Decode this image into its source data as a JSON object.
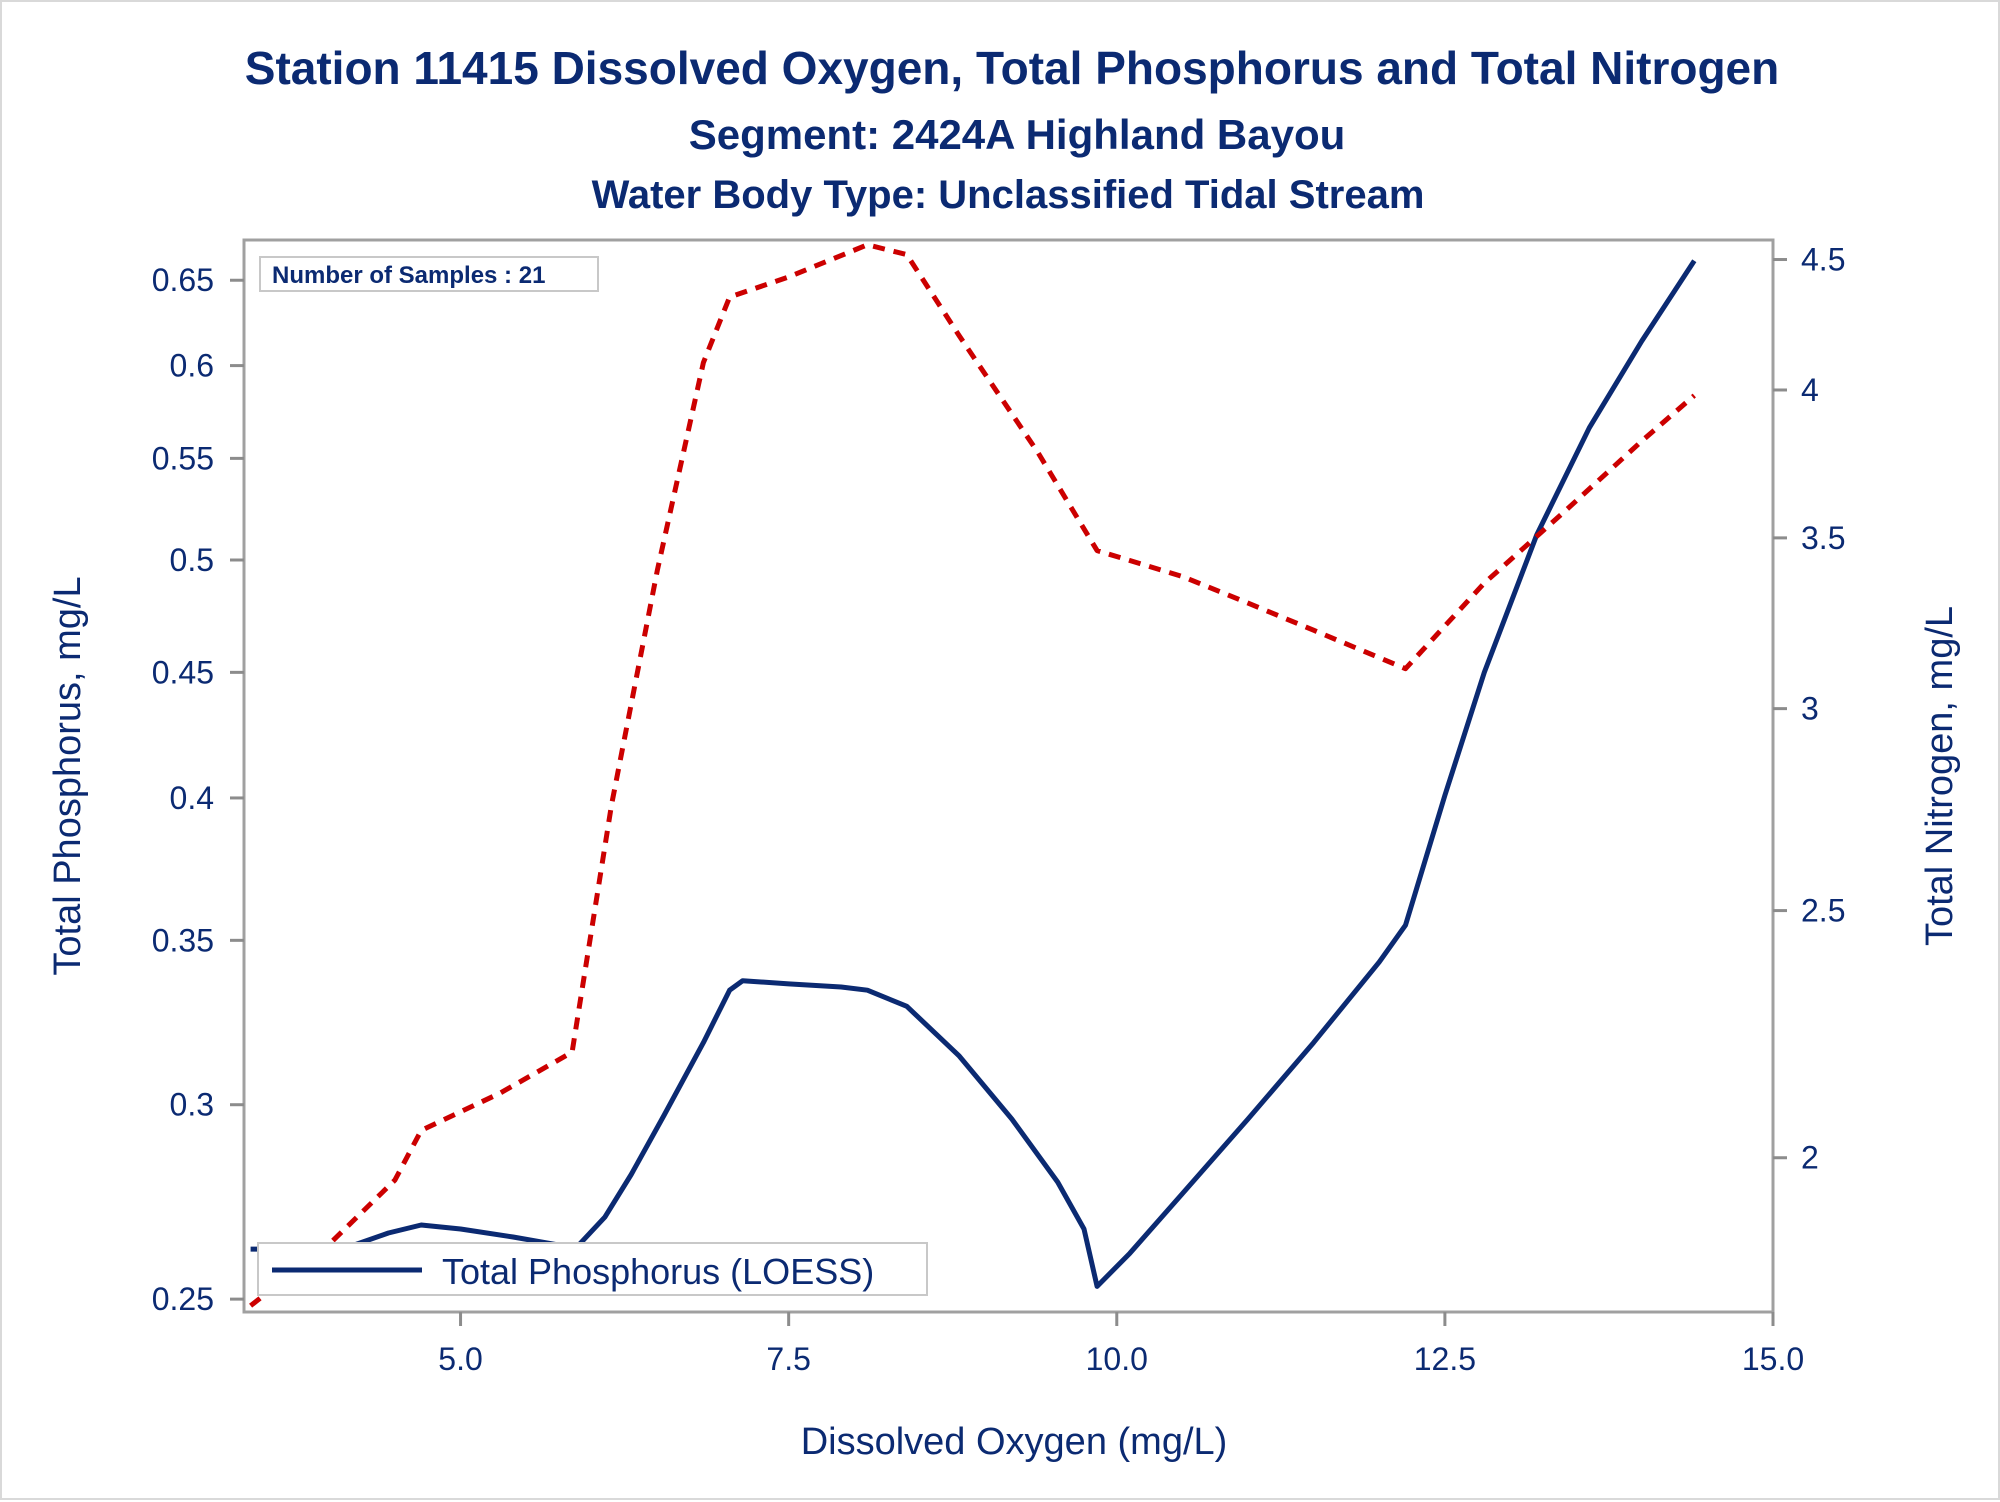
{
  "chart_data": {
    "type": "line",
    "title": "Station 11415  Dissolved Oxygen, Total Phosphorus and Total Nitrogen",
    "subtitle": "Segment: 2424A  Highland Bayou",
    "subtitle2": "Water Body Type: Unclassified Tidal Stream",
    "xlabel": "Dissolved Oxygen (mg/L)",
    "ylabel_left": "Total Phosphorus, mg/L",
    "ylabel_right": "Total Nitrogen, mg/L",
    "xlim": [
      3.35,
      15.0
    ],
    "ylim_left": [
      0.247,
      0.675
    ],
    "ylim_right": [
      1.74,
      4.58
    ],
    "y_left_scale": "log",
    "y_right_scale": "log",
    "x_ticks": [
      "5.0",
      "7.5",
      "10.0",
      "12.5",
      "15.0"
    ],
    "x_tick_values": [
      5.0,
      7.5,
      10.0,
      12.5,
      15.0
    ],
    "y_left_ticks": [
      "0.25",
      "0.3",
      "0.35",
      "0.4",
      "0.45",
      "0.5",
      "0.55",
      "0.6",
      "0.65"
    ],
    "y_left_tick_values": [
      0.25,
      0.3,
      0.35,
      0.4,
      0.45,
      0.5,
      0.55,
      0.6,
      0.65
    ],
    "y_right_ticks": [
      "2",
      "2.5",
      "3",
      "3.5",
      "4",
      "4.5"
    ],
    "y_right_tick_values": [
      2,
      2.5,
      3,
      3.5,
      4,
      4.5
    ],
    "annotation": "Number of Samples : 21",
    "legend_placement": "bottom-left",
    "series": [
      {
        "name": "Total Phosphorus (LOESS)",
        "axis": "left",
        "style": "solid",
        "color": "#0b2a72",
        "x": [
          3.4,
          3.85,
          4.1,
          4.45,
          4.7,
          5.0,
          5.4,
          5.75,
          5.9,
          6.1,
          6.3,
          6.55,
          6.85,
          7.05,
          7.15,
          7.5,
          7.9,
          8.1,
          8.4,
          8.8,
          9.2,
          9.55,
          9.75,
          9.85,
          10.1,
          10.5,
          11.0,
          11.5,
          12.0,
          12.2,
          12.5,
          12.8,
          13.2,
          13.6,
          14.0,
          14.4
        ],
        "y": [
          0.262,
          0.262,
          0.262,
          0.266,
          0.268,
          0.267,
          0.265,
          0.263,
          0.263,
          0.27,
          0.281,
          0.297,
          0.318,
          0.334,
          0.337,
          0.336,
          0.335,
          0.334,
          0.329,
          0.314,
          0.296,
          0.279,
          0.267,
          0.253,
          0.261,
          0.276,
          0.296,
          0.318,
          0.343,
          0.355,
          0.401,
          0.45,
          0.512,
          0.566,
          0.614,
          0.662
        ]
      },
      {
        "name": "Total Nitrogen",
        "axis": "right",
        "style": "dashed",
        "color": "#cc0000",
        "x": [
          3.4,
          4.0,
          4.5,
          4.7,
          5.3,
          5.85,
          6.15,
          6.5,
          6.85,
          7.05,
          7.5,
          8.1,
          8.4,
          8.8,
          9.4,
          9.85,
          10.5,
          11.0,
          11.5,
          12.2,
          12.8,
          13.4,
          14.0,
          14.4
        ],
        "y": [
          1.75,
          1.85,
          1.96,
          2.05,
          2.12,
          2.2,
          2.75,
          3.4,
          4.1,
          4.35,
          4.43,
          4.56,
          4.52,
          4.2,
          3.78,
          3.46,
          3.38,
          3.3,
          3.22,
          3.11,
          3.36,
          3.58,
          3.82,
          3.98
        ]
      }
    ]
  }
}
